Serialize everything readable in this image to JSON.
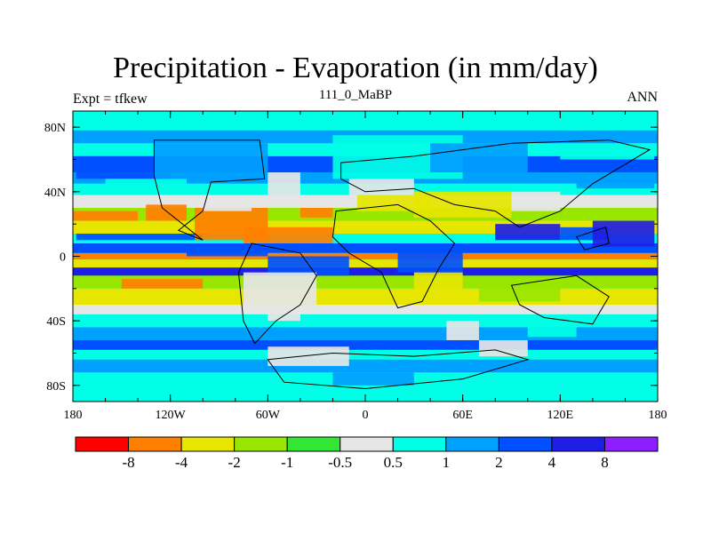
{
  "chart_data": {
    "type": "heatmap",
    "title": "Precipitation - Evaporation (in mm/day)",
    "subtitle": "111_0_MaBP",
    "left_string": "Expt = tfkew",
    "right_string": "ANN",
    "x_ticks": [
      "180",
      "120W",
      "60W",
      "0",
      "60E",
      "120E",
      "180"
    ],
    "x_range": [
      -180,
      180
    ],
    "y_ticks": [
      "80N",
      "40N",
      "0",
      "40S",
      "80S"
    ],
    "y_range": [
      -90,
      90
    ],
    "colorbar_levels": [
      "-8",
      "-4",
      "-2",
      "-1",
      "-0.5",
      "0.5",
      "1",
      "2",
      "4",
      "8"
    ],
    "colors": [
      "#ff0000",
      "#ff8000",
      "#e6e600",
      "#99e600",
      "#33e633",
      "#e6e6e6",
      "#00ffe6",
      "#00a0ff",
      "#0050ff",
      "#1e1ee6",
      "#8c1eff"
    ],
    "land_mask_outline": true
  }
}
